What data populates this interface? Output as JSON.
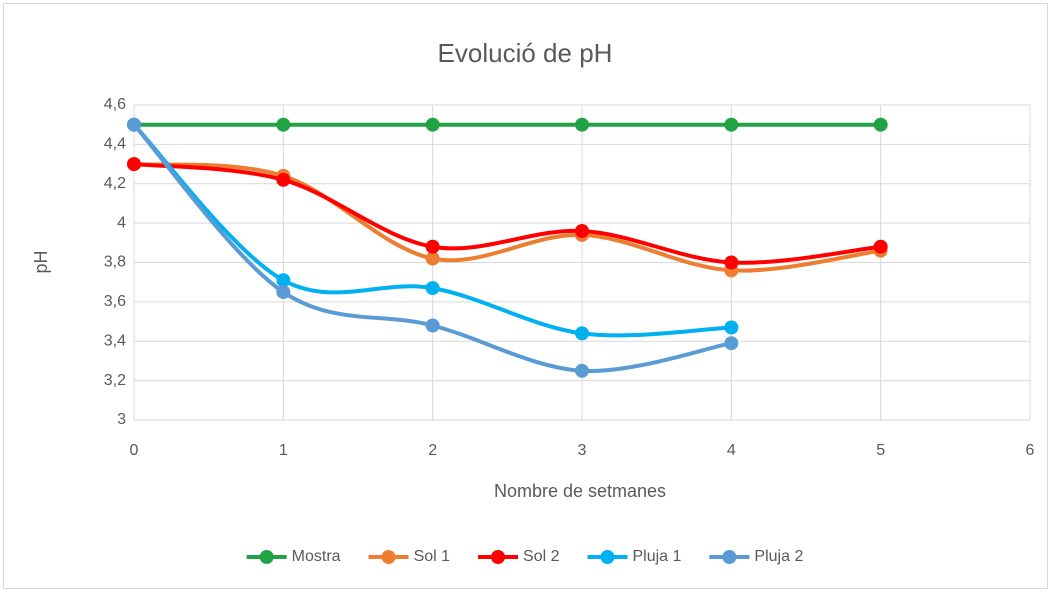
{
  "chart_data": {
    "type": "line",
    "title": "Evolució de pH",
    "xlabel": "Nombre de setmanes",
    "ylabel": "pH",
    "x": [
      0,
      1,
      2,
      3,
      4,
      5
    ],
    "series": [
      {
        "name": "Mostra",
        "color": "#21a345",
        "values": [
          4.5,
          4.5,
          4.5,
          4.5,
          4.5,
          4.5
        ]
      },
      {
        "name": "Sol 1",
        "color": "#ed7d31",
        "values": [
          4.3,
          4.24,
          3.82,
          3.94,
          3.76,
          3.86
        ]
      },
      {
        "name": "Sol 2",
        "color": "#ff0000",
        "values": [
          4.3,
          4.22,
          3.88,
          3.96,
          3.8,
          3.88
        ]
      },
      {
        "name": "Pluja 1",
        "color": "#00b0f0",
        "values": [
          4.5,
          3.71,
          3.67,
          3.44,
          3.47,
          null
        ]
      },
      {
        "name": "Pluja 2",
        "color": "#5b9bd5",
        "values": [
          4.5,
          3.65,
          3.48,
          3.25,
          3.39,
          null
        ]
      }
    ],
    "xlim": [
      0,
      6
    ],
    "xticks": [
      0,
      1,
      2,
      3,
      4,
      5,
      6
    ],
    "ylim": [
      3,
      4.6
    ],
    "yticks": [
      3,
      {
        "value": 3.2,
        "label": "3,2"
      },
      {
        "value": 3.4,
        "label": "3,4"
      },
      {
        "value": 3.6,
        "label": "3,6"
      },
      {
        "value": 3.8,
        "label": "3,8"
      },
      4,
      {
        "value": 4.2,
        "label": "4,2"
      },
      {
        "value": 4.4,
        "label": "4,4"
      },
      {
        "value": 4.6,
        "label": "4,6"
      }
    ],
    "grid": true,
    "smooth": true,
    "legend": "bottom"
  }
}
